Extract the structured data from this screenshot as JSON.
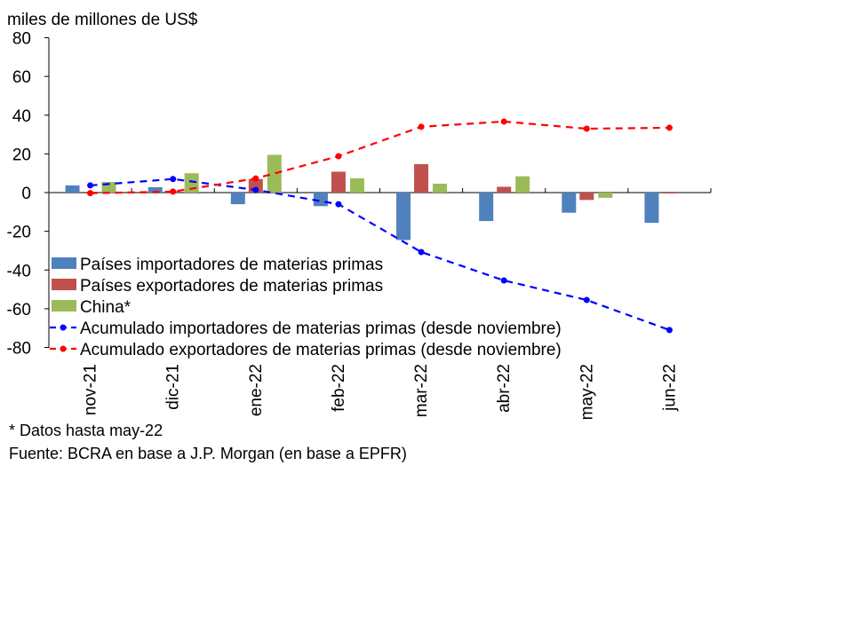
{
  "chart_data": {
    "type": "bar",
    "ylabel": "miles de millones de US$",
    "ylim": [
      -80,
      80
    ],
    "yticks": [
      80,
      60,
      40,
      20,
      0,
      -20,
      -40,
      -60,
      -80
    ],
    "grid": false,
    "legend_placement": "bottom-left inside",
    "categories": [
      "nov-21",
      "dic-21",
      "ene-22",
      "feb-22",
      "mar-22",
      "abr-22",
      "may-22",
      "jun-22"
    ],
    "series": [
      {
        "name": "Países importadores de materias primas",
        "kind": "bar",
        "color": "#4f81bd",
        "values": [
          3.7,
          2.8,
          -6,
          -7,
          -24.5,
          -14.7,
          -10.4,
          -15.6
        ]
      },
      {
        "name": "Países exportadores de materias primas",
        "kind": "bar",
        "color": "#c0504d",
        "values": [
          -0.3,
          0.8,
          7,
          10.8,
          14.7,
          3,
          -3.8,
          -0.2
        ]
      },
      {
        "name": "China*",
        "kind": "bar",
        "color": "#9bbb59",
        "values": [
          5.5,
          10,
          19.5,
          7.4,
          4.6,
          8.4,
          -2.7,
          null
        ]
      },
      {
        "name": "Acumulado importadores de materias primas (desde noviembre)",
        "kind": "line",
        "color": "#0000ff",
        "values": [
          3.7,
          7,
          1.4,
          -6,
          -30.7,
          -45.4,
          -55.5,
          -71
        ]
      },
      {
        "name": "Acumulado exportadores de materias primas (desde noviembre)",
        "kind": "line",
        "color": "#ff0000",
        "values": [
          -0.3,
          0.5,
          7.3,
          18.8,
          34,
          36.7,
          33,
          33.5
        ]
      }
    ],
    "notes": [
      "* Datos hasta may-22",
      "Fuente: BCRA en base a J.P. Morgan (en base a EPFR)"
    ]
  }
}
